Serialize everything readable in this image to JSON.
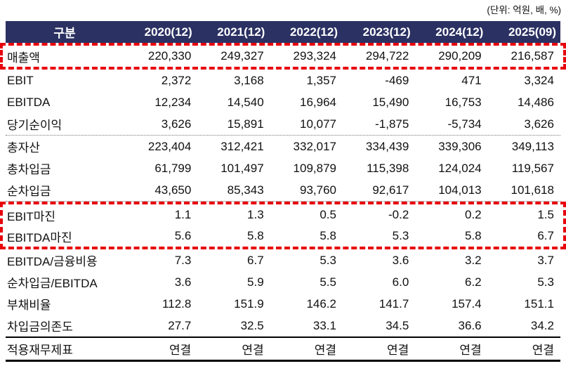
{
  "unit_note": "(단위: 억원, 배, %)",
  "colors": {
    "header_bg": "#2b3162",
    "header_text": "#ffffff",
    "highlight_border": "#e8000c",
    "body_text": "#111111"
  },
  "table": {
    "header": {
      "label": "구분",
      "columns": [
        "2020(12)",
        "2021(12)",
        "2022(12)",
        "2023(12)",
        "2024(12)",
        "2025(09)"
      ]
    },
    "rows": [
      {
        "label": "매출액",
        "values": [
          "220,330",
          "249,327",
          "293,324",
          "294,722",
          "290,209",
          "216,587"
        ]
      },
      {
        "label": "EBIT",
        "values": [
          "2,372",
          "3,168",
          "1,357",
          "-469",
          "471",
          "3,324"
        ]
      },
      {
        "label": "EBITDA",
        "values": [
          "12,234",
          "14,540",
          "16,964",
          "15,490",
          "16,753",
          "14,486"
        ]
      },
      {
        "label": "당기순이익",
        "values": [
          "3,626",
          "15,891",
          "10,077",
          "-1,875",
          "-5,734",
          "3,626"
        ]
      },
      {
        "label": "총자산",
        "values": [
          "223,404",
          "312,421",
          "332,017",
          "334,439",
          "339,306",
          "349,113"
        ]
      },
      {
        "label": "총차입금",
        "values": [
          "61,799",
          "101,497",
          "109,879",
          "115,398",
          "124,024",
          "119,567"
        ]
      },
      {
        "label": "순차입금",
        "values": [
          "43,650",
          "85,343",
          "93,760",
          "92,617",
          "104,013",
          "101,618"
        ]
      },
      {
        "label": "EBIT마진",
        "values": [
          "1.1",
          "1.3",
          "0.5",
          "-0.2",
          "0.2",
          "1.5"
        ]
      },
      {
        "label": "EBITDA마진",
        "values": [
          "5.6",
          "5.8",
          "5.8",
          "5.3",
          "5.8",
          "6.7"
        ]
      },
      {
        "label": "EBITDA/금융비용",
        "values": [
          "7.3",
          "6.7",
          "5.3",
          "3.6",
          "3.2",
          "3.7"
        ]
      },
      {
        "label": "순차입금/EBITDA",
        "values": [
          "3.6",
          "5.9",
          "5.5",
          "6.0",
          "6.2",
          "5.3"
        ]
      },
      {
        "label": "부채비율",
        "values": [
          "112.8",
          "151.9",
          "146.2",
          "141.7",
          "157.4",
          "151.1"
        ]
      },
      {
        "label": "차입금의존도",
        "values": [
          "27.7",
          "32.5",
          "33.1",
          "34.5",
          "36.6",
          "34.2"
        ]
      },
      {
        "label": "적용재무제표",
        "values": [
          "연결",
          "연결",
          "연결",
          "연결",
          "연결",
          "연결"
        ]
      }
    ]
  }
}
